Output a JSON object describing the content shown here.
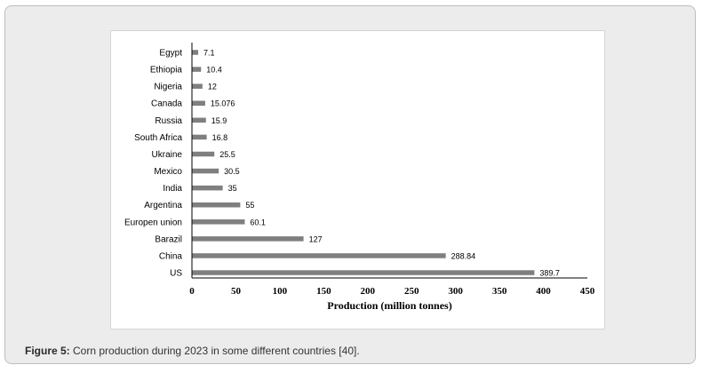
{
  "caption": {
    "label": "Figure 5:",
    "text": "Corn production during 2023 in some different countries [40]."
  },
  "chart_data": {
    "type": "bar",
    "orientation": "horizontal",
    "categories": [
      "Egypt",
      "Ethiopia",
      "Nigeria",
      "Canada",
      "Russia",
      "South Africa",
      "Ukraine",
      "Mexico",
      "India",
      "Argentina",
      "Europen union",
      "Barazil",
      "China",
      "US"
    ],
    "values": [
      7.1,
      10.4,
      12,
      15.076,
      15.9,
      16.8,
      25.5,
      30.5,
      35,
      55,
      60.1,
      127,
      288.84,
      389.7
    ],
    "value_labels": [
      "7.1",
      "10.4",
      "12",
      "15.076",
      "15.9",
      "16.8",
      "25.5",
      "30.5",
      "35",
      "55",
      "60.1",
      "127",
      "288.84",
      "389.7"
    ],
    "xlabel": "Production (million tonnes)",
    "ylabel": "",
    "xlim": [
      0,
      450
    ],
    "xticks": [
      0,
      50,
      100,
      150,
      200,
      250,
      300,
      350,
      400,
      450
    ],
    "grid": false,
    "bar_color": "#7f7f7f"
  }
}
